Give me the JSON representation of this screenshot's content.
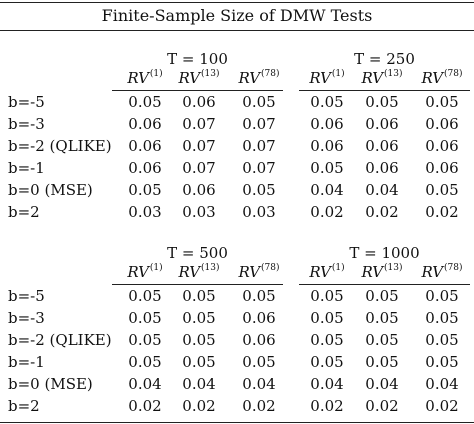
{
  "title": "Finite-Sample Size of DMW Tests",
  "column_headers": [
    {
      "base": "RV",
      "sup": "(1)"
    },
    {
      "base": "RV",
      "sup": "(13)"
    },
    {
      "base": "RV",
      "sup": "(78)"
    }
  ],
  "row_labels": [
    "b=-5",
    "b=-3",
    "b=-2 (QLIKE)",
    "b=-1",
    "b=0 (MSE)",
    "b=2"
  ],
  "panels": [
    {
      "groups": [
        {
          "label": "T = 100",
          "rows": [
            [
              "0.05",
              "0.06",
              "0.05"
            ],
            [
              "0.06",
              "0.07",
              "0.07"
            ],
            [
              "0.06",
              "0.07",
              "0.07"
            ],
            [
              "0.06",
              "0.07",
              "0.07"
            ],
            [
              "0.05",
              "0.06",
              "0.05"
            ],
            [
              "0.03",
              "0.03",
              "0.03"
            ]
          ]
        },
        {
          "label": "T = 250",
          "rows": [
            [
              "0.05",
              "0.05",
              "0.05"
            ],
            [
              "0.06",
              "0.06",
              "0.06"
            ],
            [
              "0.06",
              "0.06",
              "0.06"
            ],
            [
              "0.05",
              "0.06",
              "0.06"
            ],
            [
              "0.04",
              "0.04",
              "0.05"
            ],
            [
              "0.02",
              "0.02",
              "0.02"
            ]
          ]
        }
      ]
    },
    {
      "groups": [
        {
          "label": "T = 500",
          "rows": [
            [
              "0.05",
              "0.05",
              "0.05"
            ],
            [
              "0.05",
              "0.05",
              "0.06"
            ],
            [
              "0.05",
              "0.05",
              "0.06"
            ],
            [
              "0.05",
              "0.05",
              "0.05"
            ],
            [
              "0.04",
              "0.04",
              "0.04"
            ],
            [
              "0.02",
              "0.02",
              "0.02"
            ]
          ]
        },
        {
          "label": "T = 1000",
          "rows": [
            [
              "0.05",
              "0.05",
              "0.05"
            ],
            [
              "0.05",
              "0.05",
              "0.05"
            ],
            [
              "0.05",
              "0.05",
              "0.05"
            ],
            [
              "0.05",
              "0.05",
              "0.05"
            ],
            [
              "0.04",
              "0.04",
              "0.04"
            ],
            [
              "0.02",
              "0.02",
              "0.02"
            ]
          ]
        }
      ]
    }
  ]
}
